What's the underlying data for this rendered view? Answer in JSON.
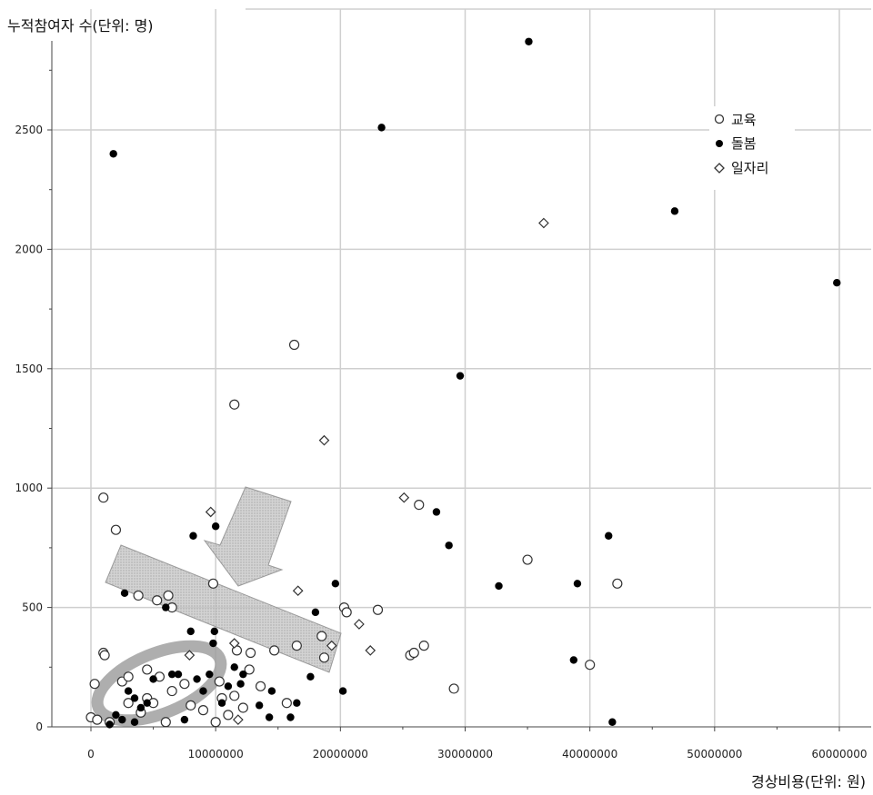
{
  "chart_data": {
    "type": "scatter",
    "xlabel": "경상비용(단위: 원)",
    "ylabel": "누적참여자 수(단위: 명)",
    "xlim": [
      -3000000,
      62000000
    ],
    "ylim": [
      0,
      2900
    ],
    "x_ticks": [
      0,
      10000000,
      20000000,
      30000000,
      40000000,
      50000000,
      60000000
    ],
    "x_tick_labels": [
      "0",
      "10000000",
      "20000000",
      "30000000",
      "40000000",
      "50000000",
      "60000000"
    ],
    "y_ticks": [
      0,
      500,
      1000,
      1500,
      2000,
      2500
    ],
    "y_tick_labels": [
      "0",
      "500",
      "1000",
      "1500",
      "2000",
      "2500"
    ],
    "grid": true,
    "legend_position": "top-right",
    "series": [
      {
        "name": "교육",
        "marker": "open-circle",
        "color": "#333333",
        "points": [
          [
            1000000,
            960
          ],
          [
            2000000,
            825
          ],
          [
            1000000,
            310
          ],
          [
            1100000,
            300
          ],
          [
            300000,
            180
          ],
          [
            0,
            40
          ],
          [
            500000,
            30
          ],
          [
            1500000,
            20
          ],
          [
            2500000,
            190
          ],
          [
            3000000,
            210
          ],
          [
            3800000,
            550
          ],
          [
            4500000,
            240
          ],
          [
            5300000,
            530
          ],
          [
            5500000,
            210
          ],
          [
            6200000,
            550
          ],
          [
            6500000,
            500
          ],
          [
            4500000,
            120
          ],
          [
            5000000,
            100
          ],
          [
            6000000,
            20
          ],
          [
            6500000,
            150
          ],
          [
            7500000,
            180
          ],
          [
            8000000,
            90
          ],
          [
            9000000,
            70
          ],
          [
            9800000,
            600
          ],
          [
            10000000,
            20
          ],
          [
            10300000,
            190
          ],
          [
            10500000,
            120
          ],
          [
            11500000,
            1350
          ],
          [
            11500000,
            130
          ],
          [
            11700000,
            320
          ],
          [
            12200000,
            80
          ],
          [
            12800000,
            310
          ],
          [
            12700000,
            240
          ],
          [
            13600000,
            170
          ],
          [
            14700000,
            320
          ],
          [
            15700000,
            100
          ],
          [
            16300000,
            1600
          ],
          [
            16500000,
            340
          ],
          [
            18500000,
            380
          ],
          [
            18700000,
            290
          ],
          [
            20300000,
            500
          ],
          [
            20500000,
            480
          ],
          [
            23000000,
            490
          ],
          [
            25600000,
            300
          ],
          [
            25900000,
            310
          ],
          [
            26300000,
            930
          ],
          [
            26700000,
            340
          ],
          [
            29100000,
            160
          ],
          [
            35000000,
            700
          ],
          [
            40000000,
            260
          ],
          [
            42200000,
            600
          ],
          [
            11000000,
            50
          ],
          [
            3000000,
            100
          ],
          [
            4000000,
            60
          ]
        ]
      },
      {
        "name": "돌봄",
        "marker": "filled-circle",
        "color": "#000000",
        "points": [
          [
            1800000,
            2400
          ],
          [
            2700000,
            560
          ],
          [
            3000000,
            150
          ],
          [
            3500000,
            120
          ],
          [
            4000000,
            80
          ],
          [
            4500000,
            100
          ],
          [
            5000000,
            200
          ],
          [
            6000000,
            500
          ],
          [
            6500000,
            220
          ],
          [
            7000000,
            220
          ],
          [
            7500000,
            30
          ],
          [
            8000000,
            400
          ],
          [
            8200000,
            800
          ],
          [
            8500000,
            200
          ],
          [
            9000000,
            150
          ],
          [
            9500000,
            220
          ],
          [
            9800000,
            350
          ],
          [
            10000000,
            840
          ],
          [
            9900000,
            400
          ],
          [
            10500000,
            100
          ],
          [
            11000000,
            170
          ],
          [
            11500000,
            250
          ],
          [
            12000000,
            180
          ],
          [
            12200000,
            220
          ],
          [
            13500000,
            90
          ],
          [
            14300000,
            40
          ],
          [
            14500000,
            150
          ],
          [
            16000000,
            40
          ],
          [
            16500000,
            100
          ],
          [
            17600000,
            210
          ],
          [
            18000000,
            480
          ],
          [
            19600000,
            600
          ],
          [
            20200000,
            150
          ],
          [
            23300000,
            2510
          ],
          [
            27700000,
            900
          ],
          [
            28700000,
            760
          ],
          [
            29600000,
            1470
          ],
          [
            32700000,
            590
          ],
          [
            35100000,
            2870
          ],
          [
            38700000,
            280
          ],
          [
            39000000,
            600
          ],
          [
            41500000,
            800
          ],
          [
            41800000,
            20
          ],
          [
            46800000,
            2160
          ],
          [
            59800000,
            1860
          ],
          [
            2000000,
            50
          ],
          [
            2500000,
            30
          ],
          [
            3500000,
            20
          ],
          [
            1500000,
            10
          ]
        ]
      },
      {
        "name": "일자리",
        "marker": "open-diamond",
        "color": "#333333",
        "points": [
          [
            9600000,
            900
          ],
          [
            11500000,
            350
          ],
          [
            11800000,
            30
          ],
          [
            16600000,
            570
          ],
          [
            18700000,
            1200
          ],
          [
            19300000,
            340
          ],
          [
            21500000,
            430
          ],
          [
            22400000,
            320
          ],
          [
            25100000,
            960
          ],
          [
            36300000,
            2110
          ],
          [
            7900000,
            300
          ]
        ]
      }
    ]
  },
  "colors": {
    "background": "#ffffff",
    "grid": "#cfcfcf",
    "axis": "#444444",
    "annotation_fill": "#b8b8b8"
  }
}
